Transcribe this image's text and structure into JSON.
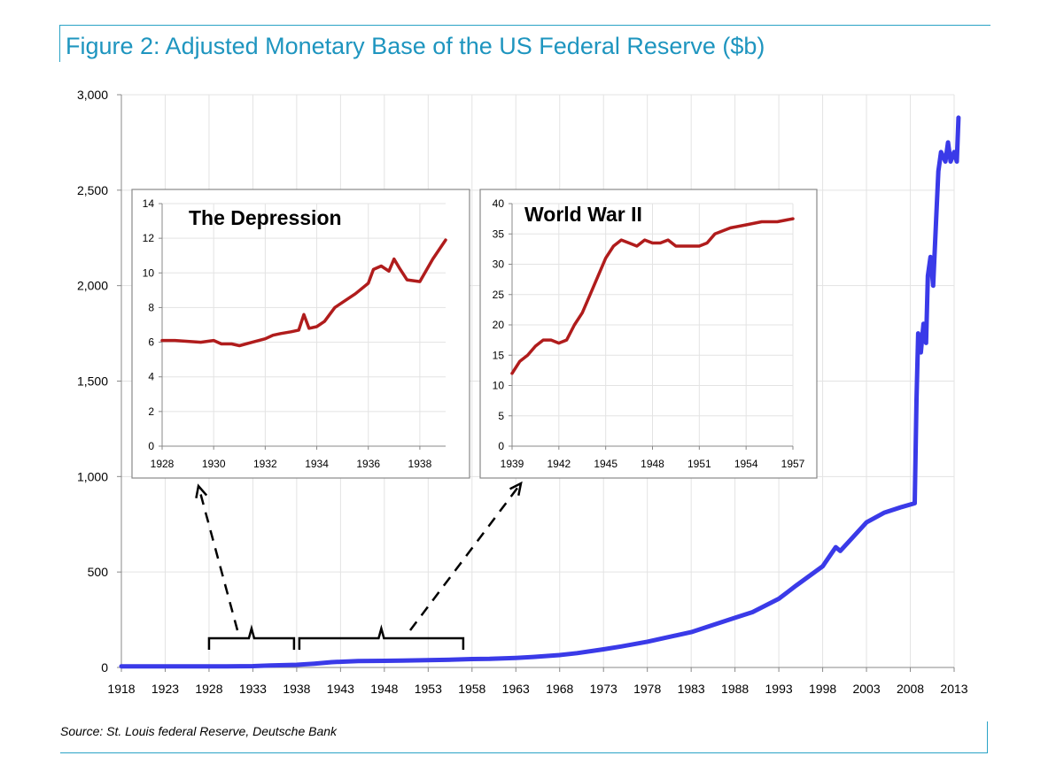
{
  "title": "Figure 2: Adjusted Monetary Base of the US Federal Reserve ($b)",
  "source": "Source: St. Louis federal Reserve, Deutsche Bank",
  "colors": {
    "main_series": "#3a3ae8",
    "inset_series": "#b01c1c",
    "accent": "#1e95bf"
  },
  "chart_data": [
    {
      "type": "line",
      "title": "",
      "xlabel": "",
      "ylabel": "",
      "xlim": [
        1918,
        2013
      ],
      "ylim": [
        0,
        3000
      ],
      "x_ticks": [
        "1918",
        "1923",
        "1928",
        "1933",
        "1938",
        "1943",
        "1948",
        "1953",
        "1958",
        "1963",
        "1968",
        "1973",
        "1978",
        "1983",
        "1988",
        "1993",
        "1998",
        "2003",
        "2008",
        "2013"
      ],
      "y_ticks": [
        "0",
        "500",
        "1,000",
        "1,500",
        "2,000",
        "2,500",
        "3,000"
      ],
      "grid": true,
      "series": [
        {
          "x": [
            1918,
            1920,
            1925,
            1928,
            1930,
            1933,
            1935,
            1938,
            1940,
            1942,
            1945,
            1948,
            1950,
            1955,
            1958,
            1960,
            1963,
            1965,
            1968,
            1970,
            1973,
            1975,
            1978,
            1980,
            1983,
            1985,
            1988,
            1990,
            1993,
            1995,
            1998,
            1999.5,
            2000,
            2001,
            2003,
            2005,
            2007,
            2008.5,
            2008.7,
            2008.9,
            2009.2,
            2009.5,
            2009.8,
            2010,
            2010.3,
            2010.6,
            2011,
            2011.2,
            2011.5,
            2012,
            2012.3,
            2012.6,
            2013,
            2013.3,
            2013.5
          ],
          "y": [
            6,
            6,
            6,
            6,
            6,
            7,
            10,
            14,
            20,
            28,
            34,
            35,
            36,
            40,
            44,
            45,
            50,
            55,
            65,
            75,
            95,
            110,
            135,
            155,
            185,
            215,
            260,
            290,
            360,
            430,
            530,
            630,
            610,
            660,
            760,
            810,
            840,
            860,
            1400,
            1750,
            1650,
            1800,
            1700,
            2050,
            2150,
            2000,
            2400,
            2600,
            2700,
            2650,
            2750,
            2650,
            2700,
            2650,
            2880
          ]
        }
      ],
      "annotations": [
        {
          "type": "bracket",
          "from": 1928,
          "to": 1938,
          "arrow_to": "The Depression"
        },
        {
          "type": "bracket",
          "from": 1938,
          "to": 1957,
          "arrow_to": "World War II"
        }
      ]
    },
    {
      "type": "line",
      "title": "The Depression",
      "xlim": [
        1928,
        1939
      ],
      "ylim": [
        0,
        14
      ],
      "x_ticks": [
        "1928",
        "1930",
        "1932",
        "1934",
        "1936",
        "1938"
      ],
      "y_ticks": [
        "0",
        "2",
        "4",
        "6",
        "8",
        "10",
        "12",
        "14"
      ],
      "grid": true,
      "series": [
        {
          "x": [
            1928,
            1928.5,
            1929,
            1929.5,
            1930,
            1930.3,
            1930.7,
            1931,
            1931.5,
            1932,
            1932.3,
            1932.6,
            1933,
            1933.3,
            1933.5,
            1933.7,
            1934,
            1934.3,
            1934.7,
            1935,
            1935.5,
            1936,
            1936.2,
            1936.5,
            1936.8,
            1937,
            1937.2,
            1937.5,
            1938,
            1938.5,
            1939
          ],
          "y": [
            6.1,
            6.1,
            6.05,
            6.0,
            6.1,
            5.9,
            5.9,
            5.8,
            6.0,
            6.2,
            6.4,
            6.5,
            6.6,
            6.7,
            7.6,
            6.8,
            6.9,
            7.2,
            8.0,
            8.3,
            8.8,
            9.4,
            10.2,
            10.4,
            10.1,
            10.8,
            10.3,
            9.6,
            9.5,
            10.8,
            11.9
          ]
        }
      ]
    },
    {
      "type": "line",
      "title": "World War II",
      "xlim": [
        1939,
        1957
      ],
      "ylim": [
        0,
        40
      ],
      "x_ticks": [
        "1939",
        "1942",
        "1945",
        "1948",
        "1951",
        "1954",
        "1957"
      ],
      "y_ticks": [
        "0",
        "5",
        "10",
        "15",
        "20",
        "25",
        "30",
        "35",
        "40"
      ],
      "grid": true,
      "series": [
        {
          "x": [
            1939,
            1939.5,
            1940,
            1940.5,
            1941,
            1941.5,
            1942,
            1942.5,
            1943,
            1943.5,
            1944,
            1944.5,
            1945,
            1945.5,
            1946,
            1946.5,
            1947,
            1947.5,
            1948,
            1948.5,
            1949,
            1949.5,
            1950,
            1950.5,
            1951,
            1951.5,
            1952,
            1953,
            1954,
            1955,
            1956,
            1957
          ],
          "y": [
            12,
            14,
            15,
            16.5,
            17.5,
            17.5,
            17,
            17.5,
            20,
            22,
            25,
            28,
            31,
            33,
            34,
            33.5,
            33,
            34,
            33.5,
            33.5,
            34,
            33,
            33,
            33,
            33,
            33.5,
            35,
            36,
            36.5,
            37,
            37,
            37.5
          ]
        }
      ]
    }
  ]
}
